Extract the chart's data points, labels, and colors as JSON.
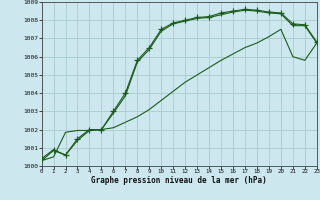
{
  "title": "Graphe pression niveau de la mer (hPa)",
  "background_color": "#cce8ee",
  "grid_color": "#aacccc",
  "line_color": "#1a5c1a",
  "xlim": [
    0,
    23
  ],
  "ylim": [
    1000,
    1009
  ],
  "xticks": [
    0,
    1,
    2,
    3,
    4,
    5,
    6,
    7,
    8,
    9,
    10,
    11,
    12,
    13,
    14,
    15,
    16,
    17,
    18,
    19,
    20,
    21,
    22,
    23
  ],
  "yticks": [
    1000,
    1001,
    1002,
    1003,
    1004,
    1005,
    1006,
    1007,
    1008,
    1009
  ],
  "line1_x": [
    0,
    1,
    2,
    3,
    4,
    5,
    6,
    7,
    8,
    9,
    10,
    11,
    12,
    13,
    14,
    15,
    16,
    17,
    18,
    19,
    20,
    21,
    22,
    23
  ],
  "line1_y": [
    1000.4,
    1000.9,
    1000.6,
    1001.5,
    1002.0,
    1002.0,
    1003.0,
    1004.0,
    1005.8,
    1006.5,
    1007.5,
    1007.85,
    1008.0,
    1008.15,
    1008.2,
    1008.4,
    1008.5,
    1008.6,
    1008.55,
    1008.45,
    1008.4,
    1007.8,
    1007.75,
    1006.8
  ],
  "line2_x": [
    0,
    1,
    2,
    3,
    4,
    5,
    6,
    7,
    8,
    9,
    10,
    11,
    12,
    13,
    14,
    15,
    16,
    17,
    18,
    19,
    20,
    21,
    22,
    23
  ],
  "line2_y": [
    1000.3,
    1000.85,
    1000.6,
    1001.4,
    1001.95,
    1002.0,
    1002.9,
    1003.85,
    1005.7,
    1006.4,
    1007.4,
    1007.8,
    1007.95,
    1008.1,
    1008.15,
    1008.3,
    1008.45,
    1008.55,
    1008.5,
    1008.4,
    1008.35,
    1007.7,
    1007.7,
    1006.75
  ],
  "line3_x": [
    0,
    1,
    2,
    3,
    4,
    5,
    6,
    7,
    8,
    9,
    10,
    11,
    12,
    13,
    14,
    15,
    16,
    17,
    18,
    19,
    20,
    21,
    22,
    23
  ],
  "line3_y": [
    1000.3,
    1000.5,
    1001.85,
    1001.95,
    1001.95,
    1002.0,
    1002.1,
    1002.4,
    1002.7,
    1003.1,
    1003.6,
    1004.1,
    1004.6,
    1005.0,
    1005.4,
    1005.8,
    1006.15,
    1006.5,
    1006.75,
    1007.1,
    1007.5,
    1006.0,
    1005.8,
    1006.75
  ]
}
